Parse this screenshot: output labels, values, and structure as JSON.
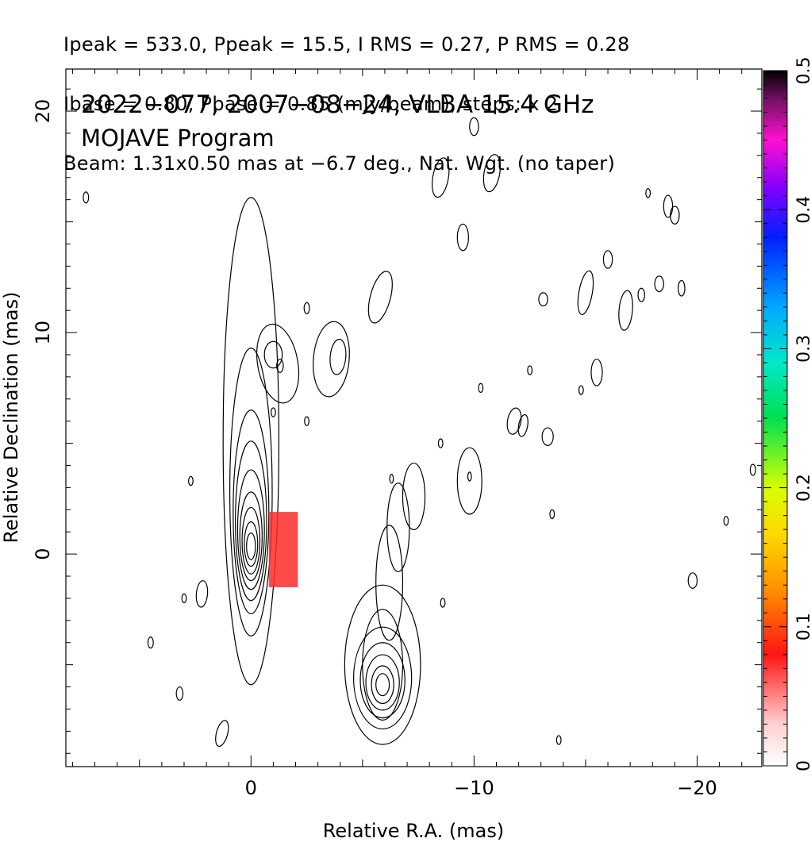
{
  "header": {
    "line1": "Ipeak = 533.0, Ppeak = 15.5, I RMS = 0.27, P RMS = 0.28",
    "line2": "Ibase = 0.80, Pbase = 0.85 (mJy/beam), steps: x 2",
    "line3": "Beam: 1.31x0.50 mas at −6.7 deg., Nat. Wgt. (no taper)"
  },
  "plot_title": {
    "line1": "2022−077, 2007−08−24, VLBA 15.4 GHz",
    "line2": "MOJAVE Program"
  },
  "chart_data": {
    "type": "contour",
    "xlabel": "Relative R.A. (mas)",
    "ylabel": "Relative Declination (mas)",
    "xlim": [
      8.3,
      -22.9
    ],
    "ylim": [
      -9.6,
      21.9
    ],
    "x_ticks": [
      {
        "value": 0,
        "label": "0"
      },
      {
        "value": -10,
        "label": "−10"
      },
      {
        "value": -20,
        "label": "−20"
      }
    ],
    "y_ticks": [
      {
        "value": 0,
        "label": "0"
      },
      {
        "value": 10,
        "label": "10"
      },
      {
        "value": 20,
        "label": "20"
      }
    ],
    "colorbar": {
      "range": [
        0,
        0.5
      ],
      "ticks": [
        {
          "value": 0,
          "label": "0"
        },
        {
          "value": 0.1,
          "label": "0.1"
        },
        {
          "value": 0.2,
          "label": "0.2"
        },
        {
          "value": 0.3,
          "label": "0.3"
        },
        {
          "value": 0.4,
          "label": "0.4"
        },
        {
          "value": 0.5,
          "label": "0.5"
        }
      ]
    },
    "contour_levels_mJy_per_beam": [
      0.8,
      1.6,
      3.2,
      6.4,
      12.8,
      25.6,
      51.2,
      102.4,
      204.8,
      409.6
    ],
    "core": {
      "ra": 0.0,
      "dec": 0.0,
      "peak_mJy_per_beam": 533.0
    },
    "sources": [
      {
        "name": "core",
        "ra": 0.0,
        "dec": 0.3,
        "levels": [
          {
            "a": 1.25,
            "b": 11.0,
            "dy": 4.8
          },
          {
            "a": 0.95,
            "b": 6.5,
            "dy": 2.5
          },
          {
            "a": 0.8,
            "b": 4.6,
            "dy": 1.6
          },
          {
            "a": 0.7,
            "b": 3.6,
            "dy": 1.2
          },
          {
            "a": 0.6,
            "b": 2.7,
            "dy": 0.8
          },
          {
            "a": 0.5,
            "b": 2.0,
            "dy": 0.5
          },
          {
            "a": 0.4,
            "b": 1.5,
            "dy": 0.3
          },
          {
            "a": 0.3,
            "b": 1.0,
            "dy": 0.15
          },
          {
            "a": 0.2,
            "b": 0.6,
            "dy": 0.05
          }
        ]
      },
      {
        "name": "secondary",
        "ra": -5.9,
        "dec": -5.9,
        "levels": [
          {
            "a": 1.7,
            "b": 3.6,
            "dy": 0.9
          },
          {
            "a": 1.3,
            "b": 2.3,
            "dy": 0.3
          },
          {
            "a": 1.0,
            "b": 1.7,
            "dy": 0.2
          },
          {
            "a": 0.75,
            "b": 1.25,
            "dy": 0.1
          },
          {
            "a": 0.5,
            "b": 0.85,
            "dy": 0.0
          },
          {
            "a": 0.3,
            "b": 0.5,
            "dy": 0.0
          }
        ]
      }
    ],
    "pol_patch": {
      "ra_min": -0.8,
      "ra_max": 0.5,
      "dec_min": -1.5,
      "dec_max": 1.9,
      "value": 0.1
    }
  }
}
